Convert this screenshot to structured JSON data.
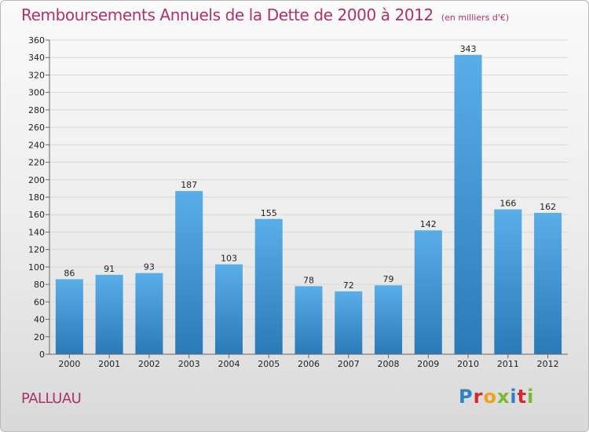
{
  "header": {
    "title": "Remboursements Annuels de la Dette de 2000 à 2012",
    "subtitle": "(en milliers d'€)"
  },
  "footer": {
    "commune": "PALLUAU",
    "logo_letters": [
      "P",
      "r",
      "o",
      "x",
      "i",
      "t",
      "i"
    ]
  },
  "colors": {
    "title": "#b0306a",
    "bar_top": "#5aaee8",
    "bar_bottom": "#2a7ab8",
    "grid": "#d8d8d8"
  },
  "chart_data": {
    "type": "bar",
    "title": "Remboursements Annuels de la Dette de 2000 à 2012",
    "subtitle": "(en milliers d'€)",
    "xlabel": "",
    "ylabel": "",
    "categories": [
      "2000",
      "2001",
      "2002",
      "2003",
      "2004",
      "2005",
      "2006",
      "2007",
      "2008",
      "2009",
      "2010",
      "2011",
      "2012"
    ],
    "values": [
      86,
      91,
      93,
      187,
      103,
      155,
      78,
      72,
      79,
      142,
      343,
      166,
      162
    ],
    "ylim": [
      0,
      360
    ],
    "ytick_step": 20,
    "grid": true,
    "legend": "none"
  }
}
